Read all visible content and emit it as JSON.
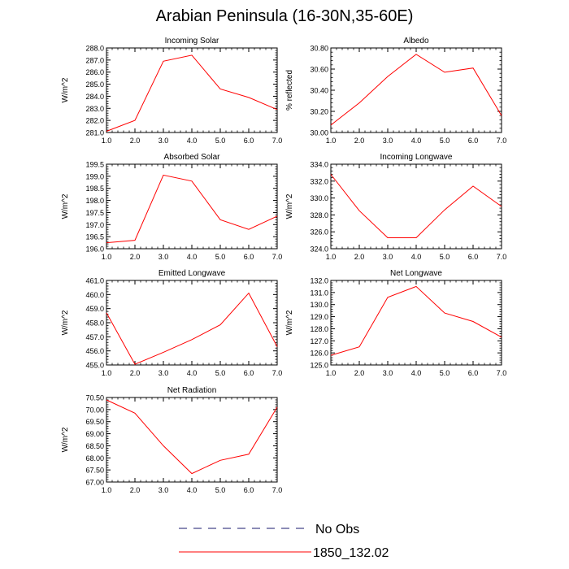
{
  "figure": {
    "title": "Arabian Peninsula (16-30N,35-60E)",
    "line_color": "#ff0000",
    "no_obs_color": "#1a1a6e",
    "legend": {
      "no_obs_label": "No Obs",
      "model_label": "1850_132.02"
    }
  },
  "chart_data": [
    {
      "type": "line",
      "title": "Incoming Solar",
      "ylabel": "W/m^2",
      "x": [
        1,
        2,
        3,
        4,
        5,
        6,
        7
      ],
      "xlim": [
        1,
        7
      ],
      "xticks": [
        "1.0",
        "2.0",
        "3.0",
        "4.0",
        "5.0",
        "6.0",
        "7.0"
      ],
      "ylim": [
        281,
        288
      ],
      "yticks": [
        "281.0",
        "282.0",
        "283.0",
        "284.0",
        "285.0",
        "286.0",
        "287.0",
        "288.0"
      ],
      "series": [
        {
          "name": "1850_132.02",
          "values": [
            281.1,
            282.0,
            286.9,
            287.4,
            284.6,
            283.9,
            282.9
          ]
        }
      ]
    },
    {
      "type": "line",
      "title": "Albedo",
      "ylabel": "% reflected",
      "x": [
        1,
        2,
        3,
        4,
        5,
        6,
        7
      ],
      "xlim": [
        1,
        7
      ],
      "xticks": [
        "1.0",
        "2.0",
        "3.0",
        "4.0",
        "5.0",
        "6.0",
        "7.0"
      ],
      "ylim": [
        30.0,
        30.8
      ],
      "yticks": [
        "30.00",
        "30.20",
        "30.40",
        "30.60",
        "30.80"
      ],
      "series": [
        {
          "name": "1850_132.02",
          "values": [
            30.07,
            30.28,
            30.53,
            30.74,
            30.57,
            30.61,
            30.16
          ]
        }
      ]
    },
    {
      "type": "line",
      "title": "Absorbed Solar",
      "ylabel": "W/m^2",
      "x": [
        1,
        2,
        3,
        4,
        5,
        6,
        7
      ],
      "xlim": [
        1,
        7
      ],
      "xticks": [
        "1.0",
        "2.0",
        "3.0",
        "4.0",
        "5.0",
        "6.0",
        "7.0"
      ],
      "ylim": [
        196.0,
        199.5
      ],
      "yticks": [
        "196.0",
        "196.5",
        "197.0",
        "197.5",
        "198.0",
        "198.5",
        "199.0",
        "199.5"
      ],
      "series": [
        {
          "name": "1850_132.02",
          "values": [
            196.25,
            196.35,
            199.05,
            198.8,
            197.2,
            196.8,
            197.35
          ]
        }
      ]
    },
    {
      "type": "line",
      "title": "Incoming Longwave",
      "ylabel": "W/m^2",
      "x": [
        1,
        2,
        3,
        4,
        5,
        6,
        7
      ],
      "xlim": [
        1,
        7
      ],
      "xticks": [
        "1.0",
        "2.0",
        "3.0",
        "4.0",
        "5.0",
        "6.0",
        "7.0"
      ],
      "ylim": [
        324.0,
        334.0
      ],
      "yticks": [
        "324.0",
        "326.0",
        "328.0",
        "330.0",
        "332.0",
        "334.0"
      ],
      "series": [
        {
          "name": "1850_132.02",
          "values": [
            332.8,
            328.5,
            325.3,
            325.3,
            328.6,
            331.4,
            329.0
          ]
        }
      ]
    },
    {
      "type": "line",
      "title": "Emitted Longwave",
      "ylabel": "W/m^2",
      "x": [
        1,
        2,
        3,
        4,
        5,
        6,
        7
      ],
      "xlim": [
        1,
        7
      ],
      "xticks": [
        "1.0",
        "2.0",
        "3.0",
        "4.0",
        "5.0",
        "6.0",
        "7.0"
      ],
      "ylim": [
        455.0,
        461.0
      ],
      "yticks": [
        "455.0",
        "456.0",
        "457.0",
        "458.0",
        "459.0",
        "460.0",
        "461.0"
      ],
      "series": [
        {
          "name": "1850_132.02",
          "values": [
            458.7,
            455.05,
            455.9,
            456.8,
            457.85,
            460.1,
            456.3
          ]
        }
      ]
    },
    {
      "type": "line",
      "title": "Net Longwave",
      "ylabel": "W/m^2",
      "x": [
        1,
        2,
        3,
        4,
        5,
        6,
        7
      ],
      "xlim": [
        1,
        7
      ],
      "xticks": [
        "1.0",
        "2.0",
        "3.0",
        "4.0",
        "5.0",
        "6.0",
        "7.0"
      ],
      "ylim": [
        125.0,
        132.0
      ],
      "yticks": [
        "125.0",
        "126.0",
        "127.0",
        "128.0",
        "129.0",
        "130.0",
        "131.0",
        "132.0"
      ],
      "series": [
        {
          "name": "1850_132.02",
          "values": [
            125.8,
            126.5,
            130.6,
            131.5,
            129.3,
            128.6,
            127.3
          ]
        }
      ]
    },
    {
      "type": "line",
      "title": "Net Radiation",
      "ylabel": "W/m^2",
      "x": [
        1,
        2,
        3,
        4,
        5,
        6,
        7
      ],
      "xlim": [
        1,
        7
      ],
      "xticks": [
        "1.0",
        "2.0",
        "3.0",
        "4.0",
        "5.0",
        "6.0",
        "7.0"
      ],
      "ylim": [
        67.0,
        70.5
      ],
      "yticks": [
        "67.00",
        "67.50",
        "68.00",
        "68.50",
        "69.00",
        "69.50",
        "70.00",
        "70.50"
      ],
      "series": [
        {
          "name": "1850_132.02",
          "values": [
            70.4,
            69.85,
            68.5,
            67.35,
            67.9,
            68.15,
            70.1
          ]
        }
      ]
    }
  ]
}
